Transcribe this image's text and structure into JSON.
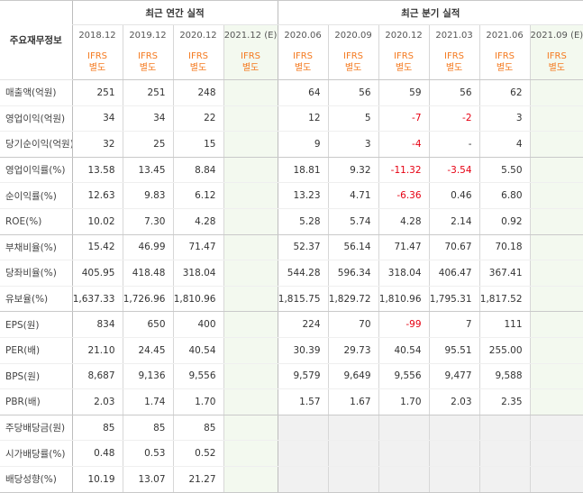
{
  "header": {
    "row_label": "주요재무정보",
    "annual_title": "최근 연간 실적",
    "quarterly_title": "최근 분기 실적",
    "annual_periods": [
      "2018.12",
      "2019.12",
      "2020.12",
      "2021.12 (E)"
    ],
    "quarterly_periods": [
      "2020.06",
      "2020.09",
      "2020.12",
      "2021.03",
      "2021.06",
      "2021.09 (E)"
    ],
    "ifrs_line1": "IFRS",
    "ifrs_line2": "별도"
  },
  "colors": {
    "negative": "#e60012",
    "ifrs": "#f47a20",
    "estimate_bg": "#f3f9ef"
  },
  "rows": [
    {
      "label": "매출액(억원)",
      "annual": [
        "251",
        "251",
        "248",
        ""
      ],
      "quarterly": [
        "64",
        "56",
        "59",
        "56",
        "62",
        ""
      ]
    },
    {
      "label": "영업이익(억원)",
      "annual": [
        "34",
        "34",
        "22",
        ""
      ],
      "quarterly": [
        "12",
        "5",
        "-7",
        "-2",
        "3",
        ""
      ]
    },
    {
      "label": "당기순이익(억원)",
      "annual": [
        "32",
        "25",
        "15",
        ""
      ],
      "quarterly": [
        "9",
        "3",
        "-4",
        "-",
        "4",
        ""
      ]
    },
    {
      "label": "영업이익률(%)",
      "annual": [
        "13.58",
        "13.45",
        "8.84",
        ""
      ],
      "quarterly": [
        "18.81",
        "9.32",
        "-11.32",
        "-3.54",
        "5.50",
        ""
      ]
    },
    {
      "label": "순이익률(%)",
      "annual": [
        "12.63",
        "9.83",
        "6.12",
        ""
      ],
      "quarterly": [
        "13.23",
        "4.71",
        "-6.36",
        "0.46",
        "6.80",
        ""
      ]
    },
    {
      "label": "ROE(%)",
      "annual": [
        "10.02",
        "7.30",
        "4.28",
        ""
      ],
      "quarterly": [
        "5.28",
        "5.74",
        "4.28",
        "2.14",
        "0.92",
        ""
      ]
    },
    {
      "label": "부채비율(%)",
      "annual": [
        "15.42",
        "46.99",
        "71.47",
        ""
      ],
      "quarterly": [
        "52.37",
        "56.14",
        "71.47",
        "70.67",
        "70.18",
        ""
      ]
    },
    {
      "label": "당좌비율(%)",
      "annual": [
        "405.95",
        "418.48",
        "318.04",
        ""
      ],
      "quarterly": [
        "544.28",
        "596.34",
        "318.04",
        "406.47",
        "367.41",
        ""
      ]
    },
    {
      "label": "유보율(%)",
      "annual": [
        "1,637.33",
        "1,726.96",
        "1,810.96",
        ""
      ],
      "quarterly": [
        "1,815.75",
        "1,829.72",
        "1,810.96",
        "1,795.31",
        "1,817.52",
        ""
      ]
    },
    {
      "label": "EPS(원)",
      "annual": [
        "834",
        "650",
        "400",
        ""
      ],
      "quarterly": [
        "224",
        "70",
        "-99",
        "7",
        "111",
        ""
      ]
    },
    {
      "label": "PER(배)",
      "annual": [
        "21.10",
        "24.45",
        "40.54",
        ""
      ],
      "quarterly": [
        "30.39",
        "29.73",
        "40.54",
        "95.51",
        "255.00",
        ""
      ]
    },
    {
      "label": "BPS(원)",
      "annual": [
        "8,687",
        "9,136",
        "9,556",
        ""
      ],
      "quarterly": [
        "9,579",
        "9,649",
        "9,556",
        "9,477",
        "9,588",
        ""
      ]
    },
    {
      "label": "PBR(배)",
      "annual": [
        "2.03",
        "1.74",
        "1.70",
        ""
      ],
      "quarterly": [
        "1.57",
        "1.67",
        "1.70",
        "2.03",
        "2.35",
        ""
      ]
    },
    {
      "label": "주당배당금(원)",
      "annual": [
        "85",
        "85",
        "85",
        ""
      ],
      "quarterly": [
        "",
        "",
        "",
        "",
        "",
        ""
      ],
      "quarterly_empty": true
    },
    {
      "label": "시가배당률(%)",
      "annual": [
        "0.48",
        "0.53",
        "0.52",
        ""
      ],
      "quarterly": [
        "",
        "",
        "",
        "",
        "",
        ""
      ],
      "quarterly_empty": true
    },
    {
      "label": "배당성향(%)",
      "annual": [
        "10.19",
        "13.07",
        "21.27",
        ""
      ],
      "quarterly": [
        "",
        "",
        "",
        "",
        "",
        ""
      ],
      "quarterly_empty": true
    }
  ],
  "group_ends": [
    2,
    5,
    8,
    12,
    15
  ]
}
